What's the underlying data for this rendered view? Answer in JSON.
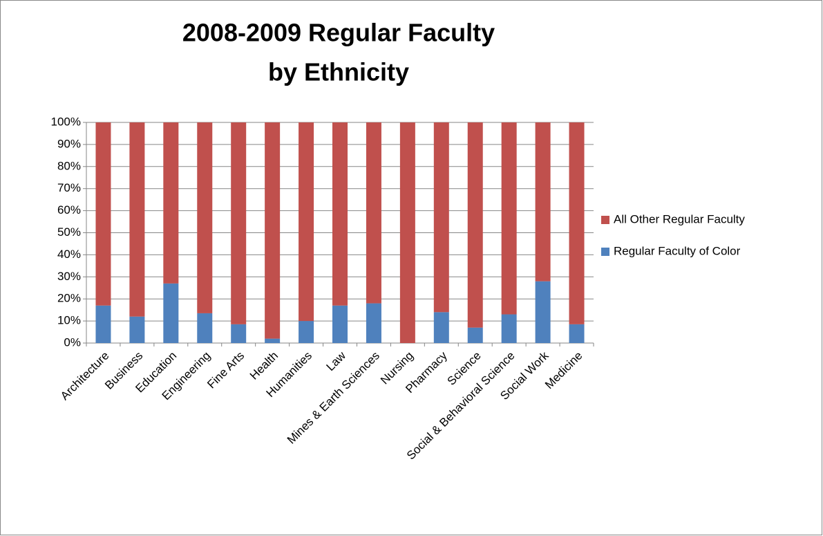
{
  "chart_data": {
    "type": "stacked_bar_100",
    "title_lines": [
      "2008-2009 Regular Faculty",
      "by Ethnicity"
    ],
    "categories": [
      "Architecture",
      "Business",
      "Education",
      "Engineering",
      "Fine Arts",
      "Health",
      "Humanities",
      "Law",
      "Mines & Earth Sciences",
      "Nursing",
      "Pharmacy",
      "Science",
      "Social & Behavioral Science",
      "Social Work",
      "Medicine"
    ],
    "series": [
      {
        "name": "Regular Faculty of Color",
        "color": "#4f81bd",
        "values": [
          17,
          12,
          27,
          13.5,
          8.5,
          2,
          10,
          17,
          18,
          0,
          14,
          7,
          13,
          28,
          8.5
        ]
      },
      {
        "name": "All Other Regular Faculty",
        "color": "#c0504d",
        "values": [
          83,
          88,
          73,
          86.5,
          91.5,
          98,
          90,
          83,
          82,
          100,
          86,
          93,
          87,
          72,
          91.5
        ]
      }
    ],
    "ylim": [
      0,
      100
    ],
    "yticks": [
      {
        "value": 0,
        "label": "0%"
      },
      {
        "value": 10,
        "label": "10%"
      },
      {
        "value": 20,
        "label": "20%"
      },
      {
        "value": 30,
        "label": "30%"
      },
      {
        "value": 40,
        "label": "40%"
      },
      {
        "value": 50,
        "label": "50%"
      },
      {
        "value": 60,
        "label": "60%"
      },
      {
        "value": 70,
        "label": "70%"
      },
      {
        "value": 80,
        "label": "80%"
      },
      {
        "value": 90,
        "label": "90%"
      },
      {
        "value": 100,
        "label": "100%"
      }
    ],
    "grid": true,
    "legend": "right"
  }
}
